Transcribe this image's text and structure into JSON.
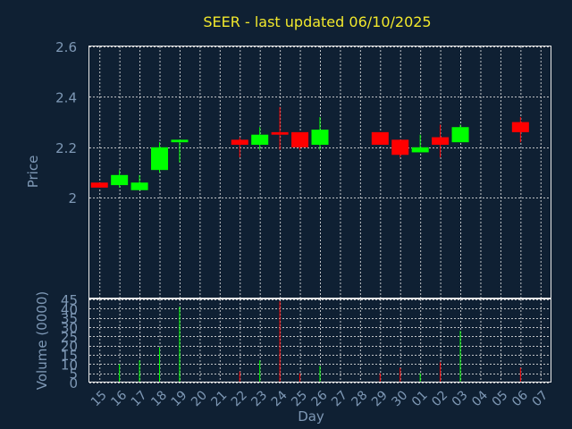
{
  "chart_data": {
    "type": "candlestick",
    "title": "SEER - last updated 06/10/2025",
    "price_ylabel": "Price",
    "volume_ylabel": "Volume (0000)",
    "xlabel": "Day",
    "price_ylim": [
      1.6,
      2.6
    ],
    "price_ticks": [
      "2",
      "2.2",
      "2.4",
      "2.6"
    ],
    "price_tick_values": [
      2.0,
      2.2,
      2.4,
      2.6
    ],
    "volume_ylim": [
      0,
      45
    ],
    "volume_ticks": [
      "0",
      "5",
      "10",
      "15",
      "20",
      "25",
      "30",
      "35",
      "40",
      "45"
    ],
    "volume_tick_values": [
      0,
      5,
      10,
      15,
      20,
      25,
      30,
      35,
      40,
      45
    ],
    "x_ticks": [
      "15",
      "16",
      "17",
      "18",
      "19",
      "20",
      "21",
      "22",
      "23",
      "24",
      "25",
      "26",
      "27",
      "28",
      "29",
      "30",
      "01",
      "02",
      "03",
      "04",
      "05",
      "06",
      "07"
    ],
    "up_color": "#00ff00",
    "down_color": "#ff0000",
    "grid": true,
    "candles": [
      {
        "i": 0,
        "open": 2.06,
        "close": 2.04,
        "high": 2.06,
        "low": 2.04,
        "volume": 0
      },
      {
        "i": 1,
        "open": 2.05,
        "close": 2.09,
        "high": 2.11,
        "low": 2.04,
        "volume": 10
      },
      {
        "i": 2,
        "open": 2.03,
        "close": 2.06,
        "high": 2.09,
        "low": 2.03,
        "volume": 12
      },
      {
        "i": 3,
        "open": 2.11,
        "close": 2.2,
        "high": 2.22,
        "low": 2.1,
        "volume": 19
      },
      {
        "i": 4,
        "open": 2.22,
        "close": 2.23,
        "high": 2.23,
        "low": 2.14,
        "volume": 41
      },
      {
        "i": 7,
        "open": 2.23,
        "close": 2.21,
        "high": 2.24,
        "low": 2.16,
        "volume": 6
      },
      {
        "i": 8,
        "open": 2.21,
        "close": 2.25,
        "high": 2.28,
        "low": 2.19,
        "volume": 12
      },
      {
        "i": 9,
        "open": 2.26,
        "close": 2.25,
        "high": 2.36,
        "low": 2.19,
        "volume": 44
      },
      {
        "i": 10,
        "open": 2.26,
        "close": 2.2,
        "high": 2.26,
        "low": 2.19,
        "volume": 5
      },
      {
        "i": 11,
        "open": 2.21,
        "close": 2.27,
        "high": 2.32,
        "low": 2.19,
        "volume": 9
      },
      {
        "i": 14,
        "open": 2.26,
        "close": 2.21,
        "high": 2.26,
        "low": 2.21,
        "volume": 5
      },
      {
        "i": 15,
        "open": 2.23,
        "close": 2.17,
        "high": 2.23,
        "low": 2.16,
        "volume": 8
      },
      {
        "i": 16,
        "open": 2.18,
        "close": 2.2,
        "high": 2.25,
        "low": 2.18,
        "volume": 5
      },
      {
        "i": 17,
        "open": 2.24,
        "close": 2.21,
        "high": 2.29,
        "low": 2.16,
        "volume": 11
      },
      {
        "i": 18,
        "open": 2.22,
        "close": 2.28,
        "high": 2.29,
        "low": 2.22,
        "volume": 28
      },
      {
        "i": 21,
        "open": 2.3,
        "close": 2.26,
        "high": 2.32,
        "low": 2.22,
        "volume": 8
      }
    ]
  }
}
